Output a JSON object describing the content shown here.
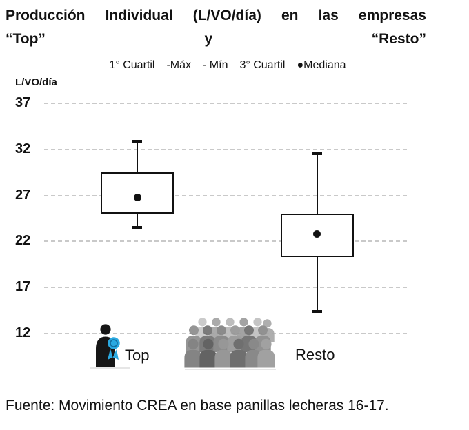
{
  "title": {
    "line1": "Producción Individual (L/VO/día) en las empresas",
    "line2": "“Top” y “Resto”"
  },
  "legend": {
    "items": [
      "1° Cuartil",
      "-Máx",
      "- Mín",
      "3° Cuartil",
      "●Mediana"
    ]
  },
  "footer": "Fuente: Movimiento CREA en base panillas lecheras 16-17.",
  "icons": {
    "top_group": "award-person-icon",
    "resto_group": "crowd-icon"
  },
  "colors": {
    "accent_blue": "#2aa9e1",
    "accent_blue_dark": "#136d9e",
    "ink": "#111111",
    "grid_gray": "#c9c9c9",
    "crowd_gray": "#8a8a8a"
  },
  "chart_data": {
    "type": "boxplot",
    "title": "Producción Individual (L/VO/día) en las empresas “Top” y “Resto”",
    "ylabel": "L/VO/día",
    "ylim": [
      12,
      37
    ],
    "yticks": [
      37,
      32,
      27,
      22,
      17,
      12
    ],
    "grid": "horizontal-dashed",
    "legend": [
      "1° Cuartil",
      "Máx",
      "Mín",
      "3° Cuartil",
      "Mediana"
    ],
    "legend_position": "top",
    "groups": [
      {
        "label": "Top",
        "min": 23.5,
        "q1": 25.0,
        "median": 26.8,
        "q3": 29.5,
        "max": 32.9
      },
      {
        "label": "Resto",
        "min": 14.4,
        "q1": 20.3,
        "median": 22.8,
        "q3": 25.0,
        "max": 31.5
      }
    ],
    "source": "Fuente: Movimiento CREA en base panillas lecheras 16-17."
  }
}
